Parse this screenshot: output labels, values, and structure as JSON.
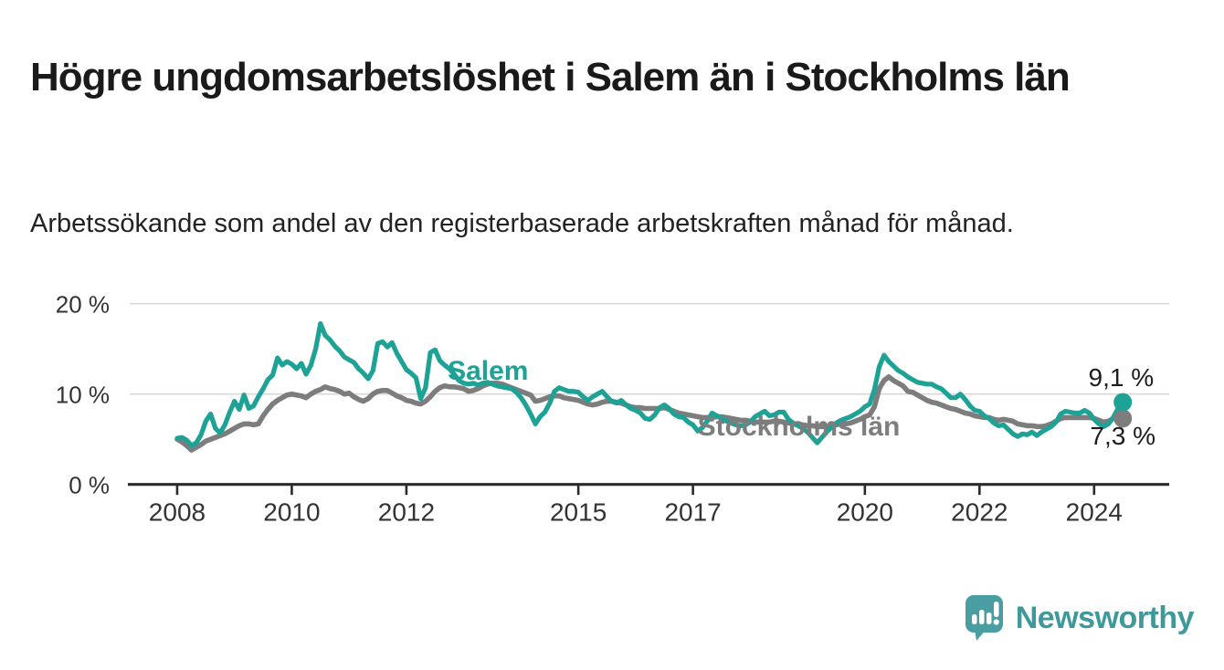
{
  "header": {
    "title": "Högre ungdomsarbetslöshet i Salem än i Stockholms län",
    "subtitle": "Arbetssökande som andel av den registerbaserade arbetskraften månad för månad."
  },
  "logo": {
    "text": "Newsworthy",
    "icon": "speech-bubble-bar-chart-icon",
    "icon_color": "#4a9da0",
    "text_color": "#3f999b"
  },
  "chart_data": {
    "type": "line",
    "title": "Högre ungdomsarbetslöshet i Salem än i Stockholms län",
    "subtitle": "Arbetssökande som andel av den registerbaserade arbetskraften månad för månad.",
    "unit": "%",
    "grid": "horizontal",
    "legend": "inline-labels",
    "xlim": [
      2007.14,
      2025.31
    ],
    "ylim": [
      0,
      21.79
    ],
    "colors": {
      "grid": "#d8d8d8",
      "axis": "#2b2b2b",
      "tick_text": "#333333",
      "end_label_text": "#1d1d1d"
    },
    "y_ticks": [
      {
        "value": 0,
        "label": "0 %"
      },
      {
        "value": 10,
        "label": "10 %"
      },
      {
        "value": 20,
        "label": "20 %"
      }
    ],
    "x_ticks": [
      {
        "value": 2008,
        "label": "2008"
      },
      {
        "value": 2010,
        "label": "2010"
      },
      {
        "value": 2012,
        "label": "2012"
      },
      {
        "value": 2015,
        "label": "2015"
      },
      {
        "value": 2017,
        "label": "2017"
      },
      {
        "value": 2020,
        "label": "2020"
      },
      {
        "value": 2022,
        "label": "2022"
      },
      {
        "value": 2024,
        "label": "2024"
      }
    ],
    "series": [
      {
        "name": "Stockholms län",
        "color": "#7d7d7d",
        "stroke_width": 5.6,
        "start": 2008.0,
        "step_months": 1,
        "end_dot": true,
        "label": {
          "x": 2017.08,
          "y": 6.4
        },
        "end_label": {
          "text": "7,3 %",
          "x": 2023.93,
          "y": 5.35
        },
        "values": [
          5.0,
          4.7,
          4.3,
          3.8,
          4.1,
          4.4,
          4.8,
          5.0,
          5.2,
          5.4,
          5.6,
          5.9,
          6.2,
          6.5,
          6.7,
          6.7,
          6.6,
          6.7,
          7.6,
          8.3,
          8.9,
          9.3,
          9.6,
          9.9,
          10.0,
          9.9,
          9.8,
          9.6,
          10.0,
          10.3,
          10.5,
          10.8,
          10.6,
          10.5,
          10.3,
          10.0,
          10.1,
          9.7,
          9.4,
          9.2,
          9.5,
          10.0,
          10.3,
          10.4,
          10.4,
          10.1,
          9.8,
          9.6,
          9.3,
          9.2,
          9.0,
          8.9,
          9.2,
          9.7,
          10.3,
          10.7,
          10.9,
          10.8,
          10.8,
          10.7,
          10.6,
          10.3,
          10.4,
          10.6,
          10.9,
          11.1,
          11.2,
          11.2,
          11.1,
          10.9,
          10.7,
          10.5,
          10.3,
          10.1,
          9.9,
          9.2,
          9.3,
          9.5,
          9.7,
          9.8,
          9.8,
          9.6,
          9.5,
          9.4,
          9.3,
          9.1,
          8.9,
          8.8,
          8.9,
          9.1,
          9.2,
          9.2,
          9.1,
          9.0,
          8.8,
          8.6,
          8.5,
          8.5,
          8.4,
          8.4,
          8.4,
          8.4,
          8.5,
          8.3,
          8.1,
          7.9,
          7.8,
          7.7,
          7.6,
          7.5,
          7.4,
          7.4,
          7.4,
          7.5,
          7.5,
          7.4,
          7.3,
          7.2,
          7.1,
          7.1,
          7.0,
          6.9,
          6.9,
          6.9,
          6.9,
          7.0,
          7.0,
          6.9,
          6.8,
          6.7,
          6.6,
          6.6,
          6.5,
          6.5,
          6.4,
          6.4,
          6.4,
          6.5,
          6.6,
          6.7,
          6.7,
          6.8,
          7.0,
          7.2,
          7.5,
          7.7,
          8.6,
          10.6,
          11.5,
          11.9,
          11.5,
          11.2,
          10.9,
          10.3,
          10.2,
          9.9,
          9.6,
          9.3,
          9.1,
          9.0,
          8.8,
          8.6,
          8.4,
          8.3,
          8.1,
          7.9,
          7.8,
          7.6,
          7.5,
          7.4,
          7.4,
          7.2,
          7.1,
          7.2,
          7.1,
          7.0,
          6.7,
          6.6,
          6.5,
          6.5,
          6.4,
          6.4,
          6.5,
          6.7,
          7.0,
          7.3,
          7.4,
          7.4,
          7.4,
          7.4,
          7.4,
          7.4,
          7.3,
          7.1,
          6.9,
          7.0,
          7.3,
          7.4,
          7.3
        ]
      },
      {
        "name": "Salem",
        "color": "#1ea296",
        "stroke_width": 5.2,
        "start": 2008.0,
        "step_months": 1,
        "end_dot": true,
        "label": {
          "x": 2012.72,
          "y": 12.55
        },
        "end_label": {
          "text": "9,1 %",
          "x": 2023.9,
          "y": 11.85
        },
        "values": [
          5.1,
          5.2,
          4.9,
          4.3,
          4.6,
          5.5,
          7.0,
          7.8,
          6.2,
          5.7,
          6.6,
          8.0,
          9.2,
          8.3,
          9.9,
          8.4,
          8.7,
          9.7,
          10.6,
          11.6,
          12.1,
          14.0,
          13.2,
          13.6,
          13.3,
          12.8,
          13.4,
          12.2,
          13.2,
          15.0,
          17.8,
          16.5,
          16.0,
          15.3,
          14.8,
          14.1,
          13.8,
          13.5,
          12.8,
          12.3,
          11.7,
          12.6,
          15.6,
          15.8,
          15.2,
          15.7,
          14.5,
          13.6,
          12.7,
          12.3,
          11.8,
          9.5,
          10.7,
          14.6,
          14.9,
          13.7,
          13.2,
          12.8,
          12.2,
          11.5,
          11.2,
          11.1,
          11.2,
          11.0,
          11.2,
          11.3,
          11.1,
          10.9,
          10.8,
          10.7,
          10.6,
          10.2,
          9.6,
          8.8,
          7.8,
          6.7,
          7.5,
          8.0,
          9.0,
          10.3,
          10.7,
          10.5,
          10.3,
          10.3,
          10.2,
          9.7,
          9.3,
          9.7,
          10.0,
          10.3,
          9.7,
          9.2,
          9.0,
          9.3,
          8.8,
          8.4,
          8.2,
          7.9,
          7.3,
          7.2,
          7.7,
          8.5,
          8.8,
          8.4,
          7.8,
          7.5,
          7.4,
          6.9,
          6.6,
          5.9,
          6.3,
          7.0,
          7.9,
          7.6,
          7.3,
          7.0,
          6.8,
          6.6,
          6.5,
          6.6,
          6.9,
          7.5,
          7.8,
          8.1,
          7.6,
          7.7,
          8.0,
          8.0,
          7.2,
          6.8,
          6.5,
          6.2,
          5.8,
          5.2,
          4.6,
          5.2,
          5.8,
          6.3,
          6.8,
          7.1,
          7.3,
          7.5,
          7.8,
          8.1,
          8.6,
          8.9,
          10.5,
          13.0,
          14.3,
          13.6,
          13.1,
          12.6,
          12.3,
          11.9,
          11.6,
          11.3,
          11.2,
          11.1,
          11.1,
          10.8,
          10.6,
          10.1,
          9.6,
          9.6,
          10.0,
          9.4,
          8.7,
          8.2,
          8.1,
          7.6,
          7.3,
          6.8,
          6.5,
          6.6,
          6.1,
          5.6,
          5.3,
          5.6,
          5.5,
          5.8,
          5.4,
          5.8,
          6.1,
          6.4,
          6.9,
          7.8,
          8.1,
          8.0,
          7.9,
          7.9,
          8.2,
          7.9,
          7.2,
          6.7,
          6.4,
          6.7,
          7.4,
          8.4,
          9.1
        ]
      }
    ]
  }
}
